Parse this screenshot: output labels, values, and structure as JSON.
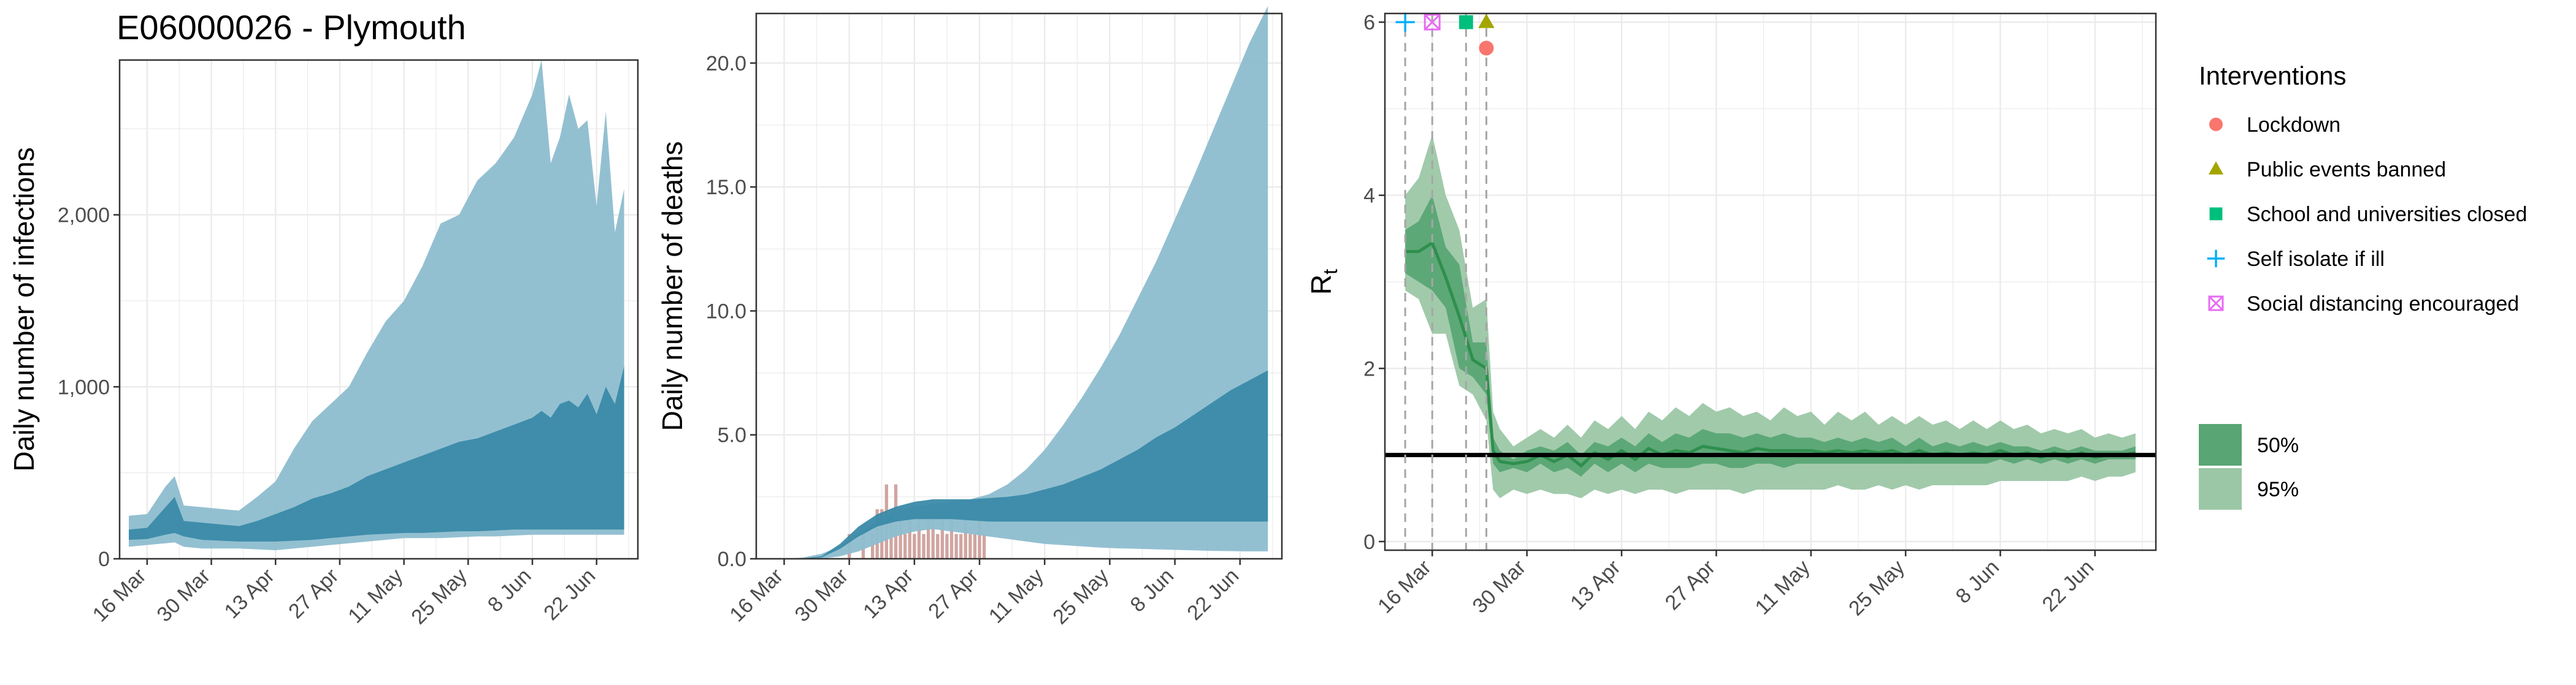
{
  "figure": {
    "title": "E06000026 - Plymouth",
    "colors": {
      "infections_95": "#8dbdcf",
      "infections_50": "#3a8aa8",
      "deaths_bar": "#c9958f",
      "rt_95": "#9cc7a6",
      "rt_50": "#5aa574",
      "rt_median": "#2f8f4e",
      "lockdown": "#f8766d",
      "public_events": "#a3a500",
      "school": "#00bf7d",
      "self_isolate": "#00b0f6",
      "social_distancing": "#e76bf3"
    }
  },
  "chart_data": [
    {
      "type": "area",
      "ylabel": "Daily number of infections",
      "x_ticks": [
        "16 Mar",
        "30 Mar",
        "13 Apr",
        "27 Apr",
        "11 May",
        "25 May",
        "8 Jun",
        "22 Jun"
      ],
      "y_ticks": [
        "0",
        "1,000",
        "2,000"
      ],
      "y_tick_values": [
        0,
        1000,
        2000
      ],
      "ylim": [
        0,
        2900
      ],
      "xlim": [
        -6,
        107
      ],
      "day0": "16 Mar",
      "days": [
        -4,
        0,
        4,
        6,
        8,
        12,
        16,
        20,
        24,
        28,
        32,
        36,
        40,
        44,
        48,
        52,
        56,
        60,
        64,
        68,
        72,
        76,
        80,
        84,
        86,
        88,
        90,
        92,
        94,
        96,
        98,
        100,
        102,
        104
      ],
      "series": [
        {
          "name": "95%",
          "lower": [
            70,
            80,
            90,
            95,
            70,
            60,
            60,
            60,
            55,
            50,
            60,
            70,
            80,
            90,
            100,
            110,
            120,
            120,
            120,
            125,
            130,
            130,
            135,
            140,
            140,
            140,
            140,
            140,
            140,
            140,
            140,
            140,
            140,
            140
          ],
          "upper": [
            250,
            260,
            420,
            480,
            310,
            300,
            290,
            280,
            360,
            450,
            640,
            800,
            900,
            1000,
            1200,
            1380,
            1500,
            1700,
            1950,
            2000,
            2200,
            2300,
            2450,
            2700,
            2900,
            2300,
            2450,
            2700,
            2500,
            2550,
            2050,
            2600,
            1900,
            2150
          ]
        },
        {
          "name": "50%",
          "lower": [
            110,
            115,
            140,
            150,
            130,
            110,
            105,
            100,
            100,
            100,
            105,
            110,
            120,
            130,
            140,
            145,
            150,
            150,
            155,
            160,
            160,
            165,
            170,
            170,
            170,
            170,
            170,
            170,
            170,
            170,
            170,
            170,
            170,
            170
          ],
          "upper": [
            170,
            180,
            300,
            360,
            220,
            210,
            200,
            190,
            220,
            260,
            300,
            350,
            380,
            420,
            480,
            520,
            560,
            600,
            640,
            680,
            700,
            740,
            780,
            820,
            860,
            820,
            900,
            920,
            880,
            960,
            840,
            1000,
            900,
            1120
          ]
        }
      ]
    },
    {
      "type": "area",
      "ylabel": "Daily number of deaths",
      "x_ticks": [
        "16 Mar",
        "30 Mar",
        "13 Apr",
        "27 Apr",
        "11 May",
        "25 May",
        "8 Jun",
        "22 Jun"
      ],
      "y_ticks": [
        "0.0",
        "5.0",
        "10.0",
        "15.0",
        "20.0"
      ],
      "y_tick_values": [
        0,
        5,
        10,
        15,
        20
      ],
      "ylim": [
        0,
        22
      ],
      "xlim": [
        -6,
        107
      ],
      "day0": "16 Mar",
      "days": [
        -4,
        0,
        4,
        8,
        12,
        16,
        20,
        24,
        28,
        32,
        36,
        40,
        44,
        48,
        52,
        56,
        60,
        64,
        68,
        72,
        76,
        80,
        84,
        88,
        92,
        96,
        100,
        104
      ],
      "series": [
        {
          "name": "95%",
          "lower": [
            0,
            0,
            0,
            0,
            0.1,
            0.3,
            0.6,
            0.9,
            1.1,
            1.2,
            1.1,
            1.0,
            0.9,
            0.8,
            0.7,
            0.6,
            0.55,
            0.5,
            0.45,
            0.42,
            0.4,
            0.38,
            0.36,
            0.34,
            0.32,
            0.31,
            0.3,
            0.3
          ],
          "upper": [
            0,
            0,
            0.05,
            0.2,
            0.5,
            1.0,
            1.5,
            1.9,
            2.1,
            2.2,
            2.3,
            2.4,
            2.6,
            3.0,
            3.6,
            4.4,
            5.4,
            6.5,
            7.7,
            9.0,
            10.5,
            12.0,
            13.7,
            15.4,
            17.2,
            19.0,
            20.8,
            22.3
          ]
        },
        {
          "name": "50%",
          "lower": [
            0,
            0,
            0,
            0.05,
            0.4,
            0.9,
            1.3,
            1.5,
            1.6,
            1.6,
            1.6,
            1.55,
            1.5,
            1.5,
            1.5,
            1.5,
            1.5,
            1.5,
            1.5,
            1.5,
            1.5,
            1.5,
            1.5,
            1.5,
            1.5,
            1.5,
            1.5,
            1.5
          ],
          "upper": [
            0,
            0,
            0.02,
            0.1,
            0.6,
            1.3,
            1.8,
            2.1,
            2.3,
            2.4,
            2.4,
            2.4,
            2.45,
            2.5,
            2.6,
            2.8,
            3.0,
            3.3,
            3.6,
            4.0,
            4.4,
            4.9,
            5.3,
            5.8,
            6.3,
            6.8,
            7.2,
            7.6
          ]
        }
      ],
      "bars": {
        "days": [
          14,
          17,
          19,
          20,
          21,
          22,
          23,
          24,
          25,
          26,
          27,
          28,
          29,
          30,
          31,
          32,
          33,
          34,
          35,
          36,
          37,
          38,
          39,
          40,
          41,
          42,
          43
        ],
        "values": [
          1,
          1,
          1,
          2,
          2,
          3,
          2,
          3,
          2,
          1,
          2,
          1,
          2,
          1,
          2,
          2,
          1,
          2,
          1,
          2,
          1,
          1,
          2,
          1,
          1,
          2,
          1
        ]
      }
    },
    {
      "type": "line",
      "ylabel": "R",
      "ylabel_sub": "t",
      "x_ticks": [
        "16 Mar",
        "30 Mar",
        "13 Apr",
        "27 Apr",
        "11 May",
        "25 May",
        "8 Jun",
        "22 Jun"
      ],
      "y_ticks": [
        "0",
        "2",
        "4",
        "6"
      ],
      "y_tick_values": [
        0,
        2,
        4,
        6
      ],
      "ylim": [
        -0.1,
        6.1
      ],
      "xlim": [
        -7,
        107
      ],
      "day0": "16 Mar",
      "reference_line": 1,
      "intervention_days": [
        -4,
        0,
        5,
        8
      ],
      "markers": [
        {
          "name": "Self isolate if ill",
          "day": -4,
          "value": 6.0,
          "shape": "plus"
        },
        {
          "name": "Social distancing encouraged",
          "day": 0,
          "value": 6.0,
          "shape": "boxx"
        },
        {
          "name": "School and universities closed",
          "day": 5,
          "value": 6.0,
          "shape": "square"
        },
        {
          "name": "Public events banned",
          "day": 8,
          "value": 6.0,
          "shape": "triangle"
        },
        {
          "name": "Lockdown",
          "day": 8,
          "value": 5.7,
          "shape": "circle"
        }
      ],
      "days": [
        -4,
        -2,
        0,
        2,
        4,
        6,
        8,
        9,
        10,
        12,
        14,
        16,
        18,
        20,
        22,
        24,
        26,
        28,
        30,
        32,
        34,
        36,
        38,
        40,
        42,
        44,
        46,
        48,
        50,
        52,
        54,
        56,
        58,
        60,
        62,
        64,
        66,
        68,
        70,
        72,
        74,
        76,
        78,
        80,
        82,
        84,
        86,
        88,
        90,
        92,
        94,
        96,
        98,
        100,
        102,
        104
      ],
      "series": [
        {
          "name": "95%",
          "lower": [
            2.9,
            2.8,
            2.4,
            2.4,
            1.8,
            1.7,
            1.4,
            0.6,
            0.5,
            0.6,
            0.55,
            0.6,
            0.55,
            0.55,
            0.5,
            0.6,
            0.55,
            0.6,
            0.55,
            0.6,
            0.6,
            0.55,
            0.6,
            0.6,
            0.6,
            0.6,
            0.55,
            0.6,
            0.6,
            0.6,
            0.6,
            0.6,
            0.6,
            0.65,
            0.6,
            0.6,
            0.65,
            0.6,
            0.65,
            0.6,
            0.65,
            0.65,
            0.65,
            0.65,
            0.65,
            0.7,
            0.7,
            0.7,
            0.7,
            0.7,
            0.7,
            0.75,
            0.7,
            0.75,
            0.75,
            0.8
          ],
          "upper": [
            4.0,
            4.2,
            4.7,
            4.0,
            3.6,
            2.7,
            2.8,
            1.5,
            1.3,
            1.1,
            1.2,
            1.3,
            1.2,
            1.35,
            1.2,
            1.4,
            1.3,
            1.45,
            1.3,
            1.5,
            1.4,
            1.55,
            1.45,
            1.6,
            1.5,
            1.55,
            1.45,
            1.5,
            1.4,
            1.55,
            1.45,
            1.5,
            1.35,
            1.5,
            1.4,
            1.5,
            1.35,
            1.45,
            1.35,
            1.45,
            1.35,
            1.4,
            1.3,
            1.4,
            1.3,
            1.4,
            1.3,
            1.35,
            1.25,
            1.3,
            1.25,
            1.3,
            1.2,
            1.25,
            1.2,
            1.25
          ]
        },
        {
          "name": "50%",
          "lower": [
            3.1,
            3.0,
            2.9,
            2.7,
            2.0,
            1.9,
            1.7,
            0.9,
            0.8,
            0.85,
            0.8,
            0.9,
            0.8,
            0.85,
            0.75,
            0.9,
            0.8,
            0.9,
            0.8,
            0.9,
            0.85,
            0.85,
            0.85,
            0.9,
            0.9,
            0.85,
            0.85,
            0.9,
            0.9,
            0.85,
            0.9,
            0.9,
            0.9,
            0.9,
            0.9,
            0.9,
            0.9,
            0.9,
            0.9,
            0.9,
            0.9,
            0.9,
            0.9,
            0.9,
            0.9,
            0.95,
            0.9,
            0.95,
            0.9,
            0.95,
            0.9,
            0.95,
            0.9,
            0.95,
            0.95,
            0.95
          ],
          "upper": [
            3.6,
            3.7,
            4.0,
            3.4,
            3.2,
            2.3,
            2.3,
            1.2,
            1.05,
            0.95,
            1.05,
            1.1,
            1.05,
            1.15,
            1.0,
            1.15,
            1.1,
            1.2,
            1.1,
            1.25,
            1.15,
            1.25,
            1.2,
            1.3,
            1.25,
            1.25,
            1.2,
            1.25,
            1.2,
            1.25,
            1.2,
            1.2,
            1.15,
            1.2,
            1.15,
            1.2,
            1.15,
            1.2,
            1.1,
            1.2,
            1.1,
            1.15,
            1.1,
            1.15,
            1.1,
            1.15,
            1.1,
            1.1,
            1.05,
            1.1,
            1.05,
            1.1,
            1.05,
            1.05,
            1.05,
            1.1
          ]
        }
      ]
    }
  ],
  "legend": {
    "title": "Interventions",
    "items": [
      {
        "label": "Lockdown",
        "shape": "circle",
        "color_key": "lockdown"
      },
      {
        "label": "Public events banned",
        "shape": "triangle",
        "color_key": "public_events"
      },
      {
        "label": "School and universities closed",
        "shape": "square",
        "color_key": "school"
      },
      {
        "label": "Self isolate if ill",
        "shape": "plus",
        "color_key": "self_isolate"
      },
      {
        "label": "Social distancing encouraged",
        "shape": "boxx",
        "color_key": "social_distancing"
      }
    ],
    "ci_items": [
      {
        "label": "50%",
        "color_key": "rt_50"
      },
      {
        "label": "95%",
        "color_key": "rt_95"
      }
    ]
  }
}
